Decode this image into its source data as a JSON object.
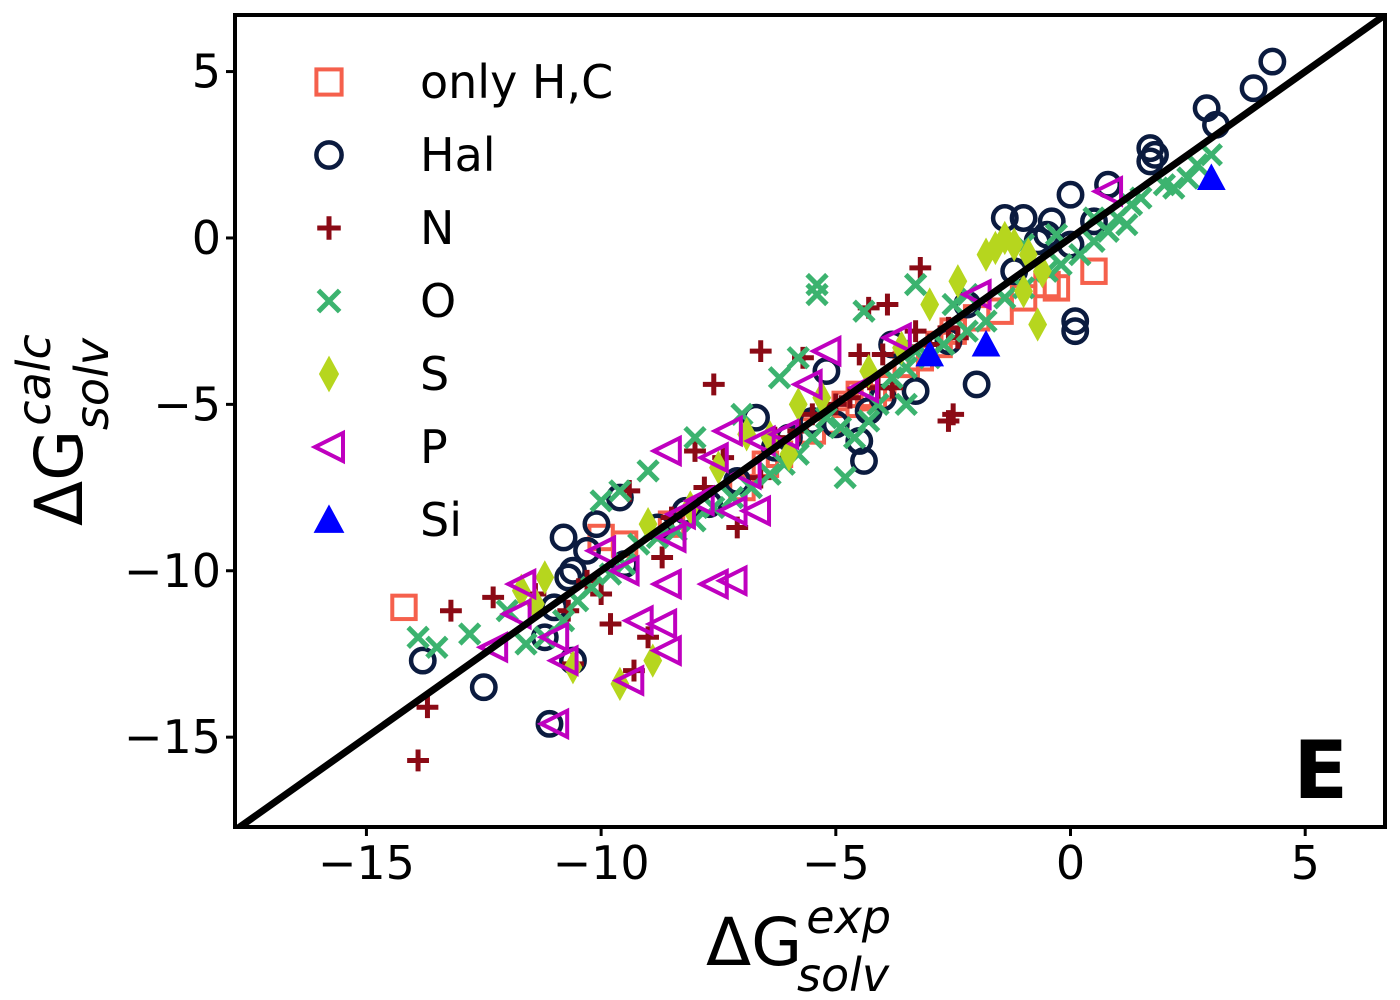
{
  "chart_data": {
    "type": "scatter",
    "title": "",
    "panel_label": "E",
    "xlabel": {
      "main": "ΔG",
      "sup": "exp",
      "sub": "solv"
    },
    "ylabel": {
      "main": "ΔG",
      "sup": "calc",
      "sub": "solv"
    },
    "xlim": [
      -17.8,
      6.7
    ],
    "ylim": [
      -17.7,
      6.7
    ],
    "xticks": [
      -15,
      -10,
      -5,
      0,
      5
    ],
    "yticks": [
      -15,
      -10,
      -5,
      0,
      5
    ],
    "xtick_labels": [
      "−15",
      "−10",
      "−5",
      "0",
      "5"
    ],
    "ytick_labels": [
      "−15",
      "−10",
      "−5",
      "0",
      "5"
    ],
    "grid": false,
    "legend_position": "top-left",
    "reference_line": {
      "label": "y = x",
      "color": "#000000"
    },
    "series": [
      {
        "name": "only H,C",
        "marker": "square",
        "color": "#f5604c",
        "points": [
          [
            -14.2,
            -11.1
          ],
          [
            -5.0,
            -5.5
          ],
          [
            -4.8,
            -5.0
          ],
          [
            -4.5,
            -4.7
          ],
          [
            -4.2,
            -4.8
          ],
          [
            -3.5,
            -3.8
          ],
          [
            -2.5,
            -2.8
          ],
          [
            -2.0,
            -2.4
          ],
          [
            -1.5,
            -2.2
          ],
          [
            -1.0,
            -1.8
          ],
          [
            -0.5,
            -1.4
          ],
          [
            -0.3,
            -1.5
          ],
          [
            0.5,
            -1.0
          ],
          [
            -6.5,
            -6.8
          ],
          [
            -6.2,
            -6.5
          ],
          [
            -5.5,
            -5.8
          ],
          [
            -7.0,
            -7.5
          ],
          [
            -10.0,
            -9.0
          ],
          [
            -9.5,
            -9.2
          ],
          [
            -8.5,
            -8.6
          ],
          [
            -4.0,
            -4.5
          ],
          [
            -3.2,
            -3.6
          ],
          [
            -2.8,
            -3.2
          ]
        ]
      },
      {
        "name": "Hal",
        "marker": "circle",
        "color": "#0b1b3f",
        "points": [
          [
            4.3,
            5.3
          ],
          [
            3.9,
            4.5
          ],
          [
            3.1,
            3.4
          ],
          [
            2.9,
            3.9
          ],
          [
            1.7,
            2.7
          ],
          [
            1.7,
            2.3
          ],
          [
            1.8,
            2.5
          ],
          [
            0.8,
            1.6
          ],
          [
            0.0,
            1.3
          ],
          [
            -1.4,
            0.6
          ],
          [
            -1.0,
            0.6
          ],
          [
            -0.4,
            0.5
          ],
          [
            -0.5,
            0.1
          ],
          [
            -0.7,
            -0.1
          ],
          [
            0.0,
            -0.2
          ],
          [
            0.5,
            0.5
          ],
          [
            0.1,
            -2.5
          ],
          [
            0.1,
            -2.8
          ],
          [
            -2.0,
            -4.4
          ],
          [
            -2.6,
            -3.1
          ],
          [
            -3.3,
            -4.6
          ],
          [
            -4.0,
            -4.8
          ],
          [
            -4.3,
            -5.2
          ],
          [
            -4.4,
            -6.7
          ],
          [
            -4.5,
            -6.1
          ],
          [
            -5.0,
            -5.6
          ],
          [
            -5.5,
            -5.5
          ],
          [
            -6.0,
            -6.0
          ],
          [
            -6.3,
            -6.3
          ],
          [
            -6.7,
            -5.4
          ],
          [
            -7.1,
            -7.3
          ],
          [
            -7.7,
            -8.0
          ],
          [
            -8.2,
            -8.2
          ],
          [
            -8.8,
            -8.7
          ],
          [
            -9.5,
            -9.8
          ],
          [
            -10.1,
            -8.6
          ],
          [
            -10.3,
            -9.4
          ],
          [
            -10.7,
            -10.2
          ],
          [
            -10.6,
            -10.0
          ],
          [
            -10.8,
            -9.0
          ],
          [
            -11.0,
            -11.1
          ],
          [
            -11.2,
            -12.0
          ],
          [
            -11.1,
            -14.6
          ],
          [
            -10.6,
            -12.7
          ],
          [
            -12.5,
            -13.5
          ],
          [
            -13.8,
            -12.7
          ],
          [
            -9.6,
            -7.8
          ],
          [
            -3.8,
            -3.2
          ],
          [
            -2.2,
            -2.0
          ],
          [
            -1.2,
            -1.0
          ],
          [
            -5.2,
            -4.0
          ]
        ]
      },
      {
        "name": "N",
        "marker": "plus",
        "color": "#8b0a15",
        "points": [
          [
            -13.9,
            -15.7
          ],
          [
            -13.7,
            -14.1
          ],
          [
            -13.2,
            -11.2
          ],
          [
            -12.3,
            -10.8
          ],
          [
            -11.4,
            -10.7
          ],
          [
            -10.7,
            -11.2
          ],
          [
            -10.6,
            -12.8
          ],
          [
            -10.3,
            -10.3
          ],
          [
            -10.0,
            -10.7
          ],
          [
            -9.8,
            -11.6
          ],
          [
            -9.3,
            -13.0
          ],
          [
            -9.0,
            -12.0
          ],
          [
            -8.7,
            -9.6
          ],
          [
            -9.4,
            -7.6
          ],
          [
            -8.5,
            -8.4
          ],
          [
            -7.8,
            -7.5
          ],
          [
            -7.4,
            -6.6
          ],
          [
            -7.1,
            -8.7
          ],
          [
            -6.6,
            -7.2
          ],
          [
            -6.3,
            -6.0
          ],
          [
            -5.8,
            -5.8
          ],
          [
            -5.5,
            -5.3
          ],
          [
            -5.0,
            -5.0
          ],
          [
            -4.7,
            -4.8
          ],
          [
            -4.5,
            -3.5
          ],
          [
            -4.1,
            -4.5
          ],
          [
            -3.8,
            -4.5
          ],
          [
            -3.3,
            -2.8
          ],
          [
            -3.2,
            -0.9
          ],
          [
            -3.0,
            -3.2
          ],
          [
            -2.6,
            -2.7
          ],
          [
            -2.4,
            -3.0
          ],
          [
            -2.6,
            -5.5
          ],
          [
            -2.5,
            -5.3
          ],
          [
            -7.6,
            -4.4
          ],
          [
            -6.6,
            -3.4
          ],
          [
            -5.7,
            -3.6
          ],
          [
            -3.9,
            -2.0
          ],
          [
            -4.3,
            -2.1
          ],
          [
            -4.0,
            -3.5
          ],
          [
            -8.0,
            -6.4
          ]
        ]
      },
      {
        "name": "O",
        "marker": "x",
        "color": "#3cb36f",
        "points": [
          [
            2.5,
            1.8
          ],
          [
            2.2,
            1.5
          ],
          [
            2.0,
            1.6
          ],
          [
            2.7,
            2.2
          ],
          [
            1.5,
            1.2
          ],
          [
            1.3,
            1.0
          ],
          [
            1.0,
            0.6
          ],
          [
            0.8,
            0.2
          ],
          [
            0.5,
            -0.1
          ],
          [
            0.2,
            -0.5
          ],
          [
            -0.2,
            -0.8
          ],
          [
            -0.5,
            -1.0
          ],
          [
            -1.0,
            -1.5
          ],
          [
            -1.4,
            -1.8
          ],
          [
            -1.8,
            -2.5
          ],
          [
            -2.2,
            -2.8
          ],
          [
            -2.7,
            -3.2
          ],
          [
            -3.0,
            -3.6
          ],
          [
            -3.3,
            -3.4
          ],
          [
            -3.5,
            -3.9
          ],
          [
            -3.8,
            -4.2
          ],
          [
            -4.1,
            -5.0
          ],
          [
            -4.3,
            -5.5
          ],
          [
            -4.6,
            -6.0
          ],
          [
            -4.9,
            -5.7
          ],
          [
            -5.2,
            -5.4
          ],
          [
            -5.5,
            -6.0
          ],
          [
            -5.8,
            -6.5
          ],
          [
            -6.1,
            -6.8
          ],
          [
            -6.4,
            -7.1
          ],
          [
            -6.8,
            -7.5
          ],
          [
            -7.2,
            -7.8
          ],
          [
            -7.6,
            -8.1
          ],
          [
            -8.0,
            -8.5
          ],
          [
            -8.4,
            -8.8
          ],
          [
            -8.8,
            -9.0
          ],
          [
            -9.2,
            -9.2
          ],
          [
            -9.5,
            -9.8
          ],
          [
            -9.8,
            -10.1
          ],
          [
            -10.2,
            -10.5
          ],
          [
            -10.5,
            -10.9
          ],
          [
            -10.8,
            -11.5
          ],
          [
            -11.2,
            -12.0
          ],
          [
            -11.6,
            -12.2
          ],
          [
            -12.0,
            -11.2
          ],
          [
            -12.8,
            -11.9
          ],
          [
            -13.5,
            -12.3
          ],
          [
            -13.9,
            -12.0
          ],
          [
            -5.4,
            -1.4
          ],
          [
            -5.4,
            -1.7
          ],
          [
            -3.3,
            -1.4
          ],
          [
            -2.2,
            -1.7
          ],
          [
            -4.4,
            -2.2
          ],
          [
            -5.8,
            -3.6
          ],
          [
            -6.2,
            -4.2
          ],
          [
            -7.0,
            -5.3
          ],
          [
            -8.0,
            -6.0
          ],
          [
            -9.0,
            -7.0
          ],
          [
            -9.6,
            -7.6
          ],
          [
            -10.0,
            -7.9
          ],
          [
            -4.8,
            -7.2
          ],
          [
            -3.5,
            -5.0
          ],
          [
            -2.5,
            -2.0
          ],
          [
            -1.0,
            -0.2
          ],
          [
            -0.3,
            0.1
          ],
          [
            0.5,
            0.6
          ],
          [
            1.2,
            0.4
          ],
          [
            3.0,
            2.5
          ]
        ]
      },
      {
        "name": "S",
        "marker": "diamond",
        "color": "#b6d61e",
        "points": [
          [
            -1.8,
            -0.5
          ],
          [
            -1.6,
            -0.3
          ],
          [
            -1.4,
            0.0
          ],
          [
            -1.2,
            -0.2
          ],
          [
            -0.9,
            -0.5
          ],
          [
            -0.6,
            -1.0
          ],
          [
            -0.7,
            -2.6
          ],
          [
            -1.0,
            -1.6
          ],
          [
            -2.4,
            -1.3
          ],
          [
            -3.0,
            -2.0
          ],
          [
            -3.6,
            -3.3
          ],
          [
            -4.3,
            -4.0
          ],
          [
            -5.3,
            -4.8
          ],
          [
            -5.8,
            -5.0
          ],
          [
            -6.0,
            -6.5
          ],
          [
            -6.4,
            -6.0
          ],
          [
            -6.9,
            -5.9
          ],
          [
            -7.5,
            -6.9
          ],
          [
            -8.1,
            -8.1
          ],
          [
            -9.0,
            -8.6
          ],
          [
            -9.6,
            -13.4
          ],
          [
            -8.9,
            -12.7
          ],
          [
            -10.6,
            -12.9
          ],
          [
            -11.4,
            -11.0
          ],
          [
            -11.7,
            -10.6
          ],
          [
            -11.2,
            -10.2
          ]
        ]
      },
      {
        "name": "P",
        "marker": "triangle-left",
        "color": "#bf00bf",
        "points": [
          [
            0.8,
            1.4
          ],
          [
            -2.0,
            -1.7
          ],
          [
            -3.7,
            -3.0
          ],
          [
            -4.4,
            -4.5
          ],
          [
            -5.2,
            -3.4
          ],
          [
            -5.6,
            -4.4
          ],
          [
            -6.1,
            -5.9
          ],
          [
            -6.6,
            -6.1
          ],
          [
            -6.9,
            -7.1
          ],
          [
            -7.3,
            -5.8
          ],
          [
            -7.6,
            -6.6
          ],
          [
            -7.9,
            -7.9
          ],
          [
            -8.3,
            -8.3
          ],
          [
            -8.5,
            -9.0
          ],
          [
            -8.6,
            -10.4
          ],
          [
            -8.6,
            -6.4
          ],
          [
            -8.7,
            -11.6
          ],
          [
            -8.6,
            -12.4
          ],
          [
            -9.2,
            -11.5
          ],
          [
            -9.4,
            -13.3
          ],
          [
            -9.5,
            -10.0
          ],
          [
            -10.0,
            -9.4
          ],
          [
            -10.8,
            -12.7
          ],
          [
            -11.0,
            -14.6
          ],
          [
            -11.0,
            -12.0
          ],
          [
            -11.8,
            -11.3
          ],
          [
            -11.7,
            -10.4
          ],
          [
            -12.3,
            -12.3
          ],
          [
            -7.2,
            -10.3
          ],
          [
            -7.6,
            -10.4
          ],
          [
            -6.7,
            -8.2
          ],
          [
            -7.2,
            -8.2
          ]
        ]
      },
      {
        "name": "Si",
        "marker": "triangle-up",
        "color": "#0000ff",
        "points": [
          [
            3.0,
            1.8
          ],
          [
            -1.8,
            -3.2
          ],
          [
            -3.0,
            -3.5
          ]
        ]
      }
    ]
  }
}
